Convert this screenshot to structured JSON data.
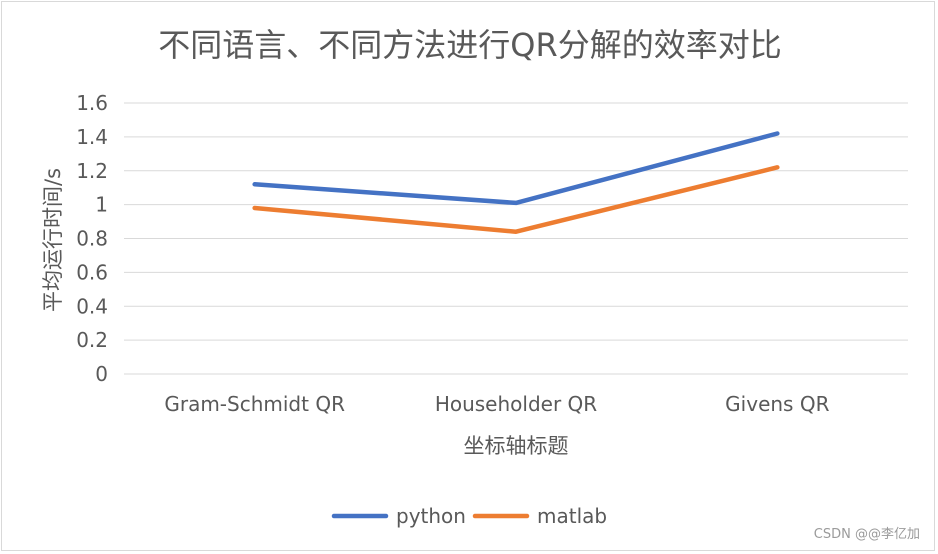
{
  "chart_data": {
    "type": "line",
    "title": "不同语言、不同方法进行QR分解的效率对比",
    "xlabel": "坐标轴标题",
    "ylabel": "平均运行时间/s",
    "categories": [
      "Gram-Schmidt QR",
      "Householder QR",
      "Givens QR"
    ],
    "series": [
      {
        "name": "python",
        "color": "#4472c4",
        "values": [
          1.12,
          1.01,
          1.42
        ]
      },
      {
        "name": "matlab",
        "color": "#ed7d31",
        "values": [
          0.98,
          0.84,
          1.22
        ]
      }
    ],
    "ylim": [
      0,
      1.6
    ],
    "yticks": [
      "0",
      "0.2",
      "0.4",
      "0.6",
      "0.8",
      "1",
      "1.2",
      "1.4",
      "1.6"
    ],
    "grid": true,
    "legend_position": "bottom"
  },
  "watermark": "CSDN @@李亿加"
}
